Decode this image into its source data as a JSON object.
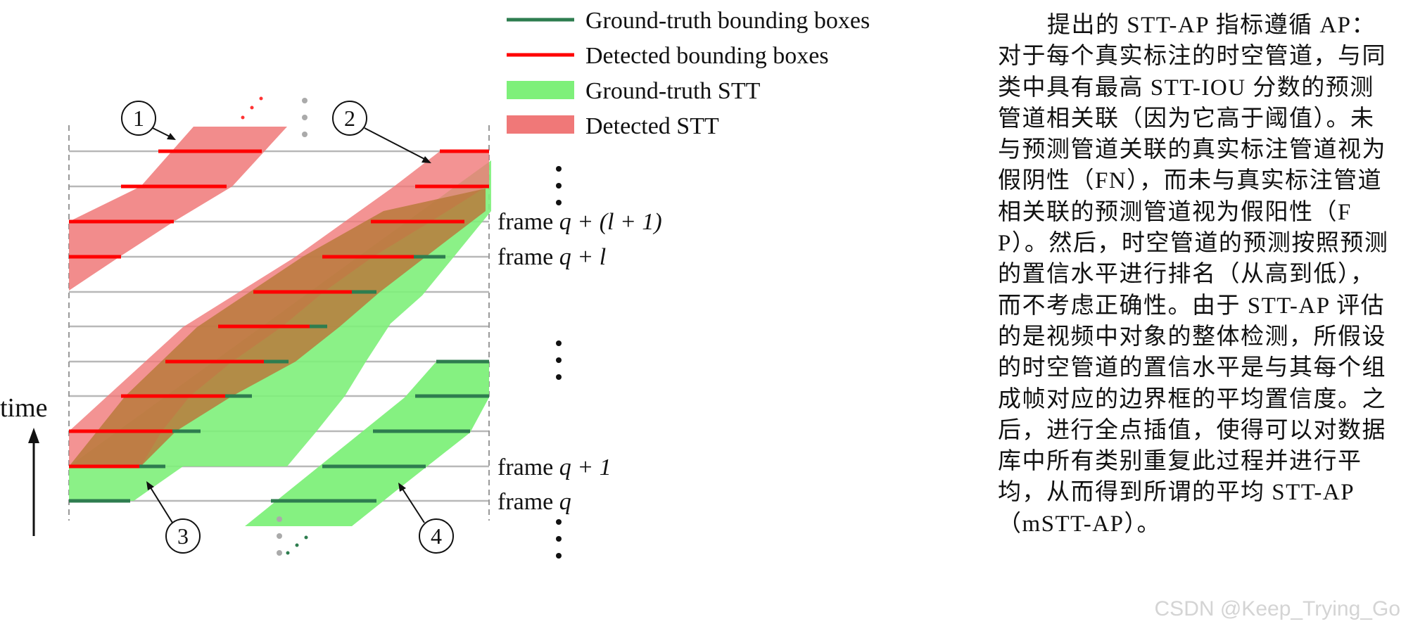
{
  "legend": [
    {
      "label": "Ground-truth bounding boxes",
      "swatch": "line",
      "color": "#2e7d4f"
    },
    {
      "label": "Detected bounding boxes",
      "swatch": "line",
      "color": "#ff0000"
    },
    {
      "label": "Ground-truth STT",
      "swatch": "band",
      "color": "#7ef07a"
    },
    {
      "label": "Detected STT",
      "swatch": "band",
      "color": "#f07878"
    }
  ],
  "frame_labels": [
    {
      "prefix": "frame ",
      "math": "q + (l + 1)"
    },
    {
      "prefix": "frame ",
      "math": "q + l"
    },
    {
      "prefix": "frame ",
      "math": "q + 1"
    },
    {
      "prefix": "frame ",
      "math": "q"
    }
  ],
  "time_label": "time",
  "markers": [
    "1",
    "2",
    "3",
    "4"
  ],
  "paragraph": "提出的 STT-AP 指标遵循 AP：对于每个真实标注的时空管道，与同类中具有最高 STT-IOU 分数的预测管道相关联（因为它高于阈值）。未与预测管道关联的真实标注管道视为假阴性（FN），而未与真实标注管道相关联的预测管道视为假阳性（FP）。然后，时空管道的预测按照预测的置信水平进行排名（从高到低），而不考虑正确性。由于 STT-AP 评估的是视频中对象的整体检测，所假设的时空管道的置信水平是与其每个组成帧对应的边界框的平均置信度。之后，进行全点插值，使得可以对数据库中所有类别重复此过程并进行平均，从而得到所谓的平均 STT-AP（mSTT-AP）。",
  "watermark": "CSDN @Keep_Trying_Go",
  "colors": {
    "gt_line": "#2e7d4f",
    "det_line": "#ff0000",
    "gt_band": "#7ef07a",
    "det_band": "#f07878",
    "overlap": "#b87a3c",
    "frame_line": "#b8b8b8"
  }
}
